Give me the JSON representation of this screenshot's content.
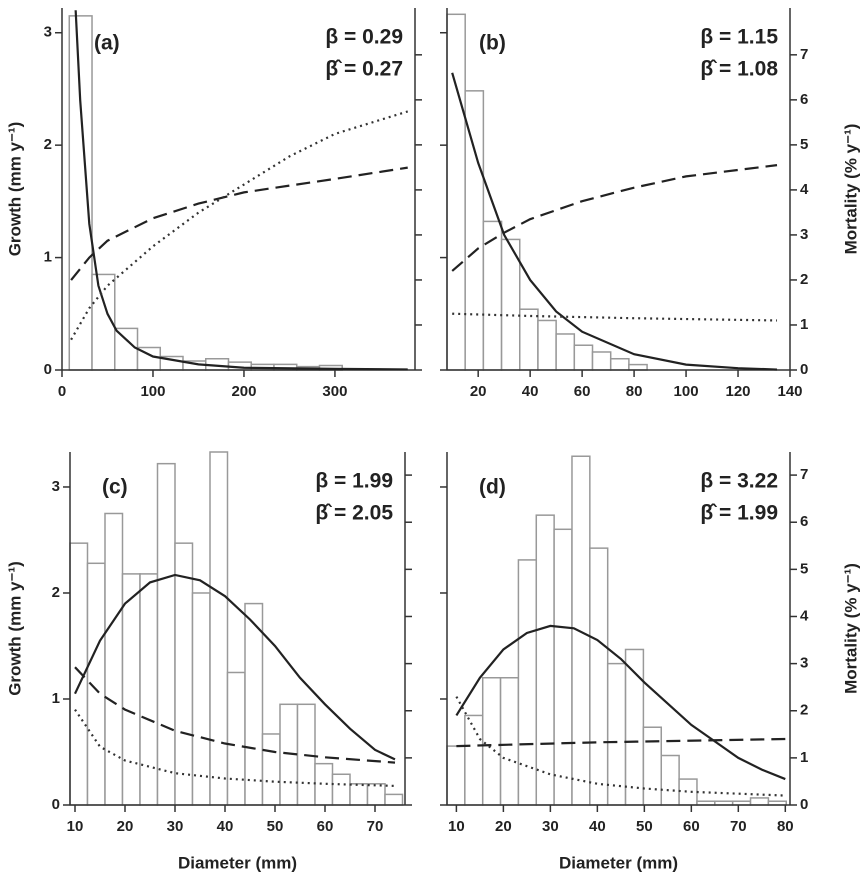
{
  "chart_data": [
    {
      "type": "histogram",
      "annotations": [
        "(a)",
        "β = 0.29",
        "β̂ = 0.27"
      ],
      "ylabel": "Growth (mm y⁻¹)",
      "xlim": [
        0,
        388
      ],
      "xticks": [
        0,
        100,
        200,
        300
      ],
      "ylim": [
        0,
        3.22
      ],
      "yticks": [
        0,
        1,
        2,
        3
      ],
      "ytick_labels": true,
      "y2lim": [
        0,
        8.04
      ],
      "y2ticks": [
        0,
        1,
        2,
        3,
        4,
        5,
        6,
        7
      ],
      "y2tick_labels": false,
      "bins": [
        8,
        33,
        58,
        83,
        108,
        133,
        158,
        183,
        208,
        233,
        258,
        283,
        308
      ],
      "counts": [
        3.15,
        0.85,
        0.37,
        0.2,
        0.12,
        0.08,
        0.1,
        0.07,
        0.05,
        0.05,
        0.03,
        0.04
      ],
      "counts_axis": "y",
      "bar_color": "#999999",
      "series": [
        {
          "style": "solid",
          "axis": "y",
          "color": "#222222",
          "x": [
            15,
            20,
            30,
            40,
            50,
            60,
            80,
            100,
            150,
            200,
            300,
            380
          ],
          "values": [
            3.2,
            2.4,
            1.3,
            0.75,
            0.5,
            0.35,
            0.2,
            0.12,
            0.05,
            0.02,
            0.01,
            0.005
          ]
        },
        {
          "style": "dashed",
          "axis": "y",
          "color": "#222222",
          "x": [
            10,
            30,
            50,
            100,
            150,
            200,
            250,
            300,
            380
          ],
          "values": [
            0.8,
            1.0,
            1.15,
            1.35,
            1.48,
            1.58,
            1.64,
            1.7,
            1.8
          ]
        },
        {
          "style": "dotted",
          "axis": "y",
          "color": "#333333",
          "x": [
            10,
            30,
            50,
            100,
            150,
            200,
            250,
            300,
            380
          ],
          "values": [
            0.27,
            0.55,
            0.75,
            1.1,
            1.4,
            1.65,
            1.9,
            2.1,
            2.3
          ]
        }
      ]
    },
    {
      "type": "histogram",
      "annotations": [
        "(b)",
        "β = 1.15",
        "β̂ = 1.08"
      ],
      "y2label": "Mortality (% y⁻¹)",
      "xlim": [
        8,
        140
      ],
      "xticks": [
        20,
        40,
        60,
        80,
        100,
        120,
        140
      ],
      "ylim": [
        0,
        3.22
      ],
      "yticks": [
        0,
        1,
        2,
        3
      ],
      "ytick_labels": false,
      "y2lim": [
        0,
        8.04
      ],
      "y2ticks": [
        0,
        1,
        2,
        3,
        4,
        5,
        6,
        7
      ],
      "y2tick_labels": true,
      "bins": [
        8,
        15,
        22,
        29,
        36,
        43,
        50,
        57,
        64,
        71,
        78,
        85
      ],
      "counts": [
        7.9,
        6.2,
        3.3,
        2.9,
        1.35,
        1.1,
        0.8,
        0.55,
        0.4,
        0.25,
        0.12
      ],
      "counts_axis": "y2",
      "bar_color": "#999999",
      "series": [
        {
          "style": "solid",
          "axis": "y2",
          "color": "#222222",
          "x": [
            10,
            20,
            30,
            40,
            50,
            60,
            80,
            100,
            120,
            135
          ],
          "values": [
            6.6,
            4.6,
            3.0,
            2.0,
            1.3,
            0.85,
            0.35,
            0.12,
            0.04,
            0.01
          ]
        },
        {
          "style": "dashed",
          "axis": "y2",
          "color": "#222222",
          "x": [
            10,
            20,
            30,
            40,
            60,
            80,
            100,
            135
          ],
          "values": [
            2.2,
            2.7,
            3.05,
            3.35,
            3.75,
            4.05,
            4.3,
            4.55
          ]
        },
        {
          "style": "dotted",
          "axis": "y2",
          "color": "#333333",
          "x": [
            10,
            40,
            80,
            135
          ],
          "values": [
            1.25,
            1.2,
            1.15,
            1.1
          ]
        }
      ]
    },
    {
      "type": "histogram",
      "annotations": [
        "(c)",
        "β = 1.99",
        "β̂ = 2.05"
      ],
      "ylabel": "Growth (mm y⁻¹)",
      "xlabel": "Diameter (mm)",
      "xlim": [
        9,
        76
      ],
      "xticks": [
        10,
        20,
        30,
        40,
        50,
        60,
        70
      ],
      "ylim": [
        0,
        3.33
      ],
      "yticks": [
        0,
        1,
        2,
        3
      ],
      "ytick_labels": true,
      "y2lim": [
        0,
        7.49
      ],
      "y2ticks": [
        0,
        1,
        2,
        3,
        4,
        5,
        6,
        7
      ],
      "y2tick_labels": false,
      "bins": [
        9,
        12.5,
        16,
        19.5,
        23,
        26.5,
        30,
        33.5,
        37,
        40.5,
        44,
        47.5,
        51,
        54.5,
        58,
        61.5,
        65,
        68.5,
        72,
        75.5
      ],
      "counts": [
        2.47,
        2.28,
        2.75,
        2.18,
        2.18,
        3.22,
        2.47,
        2.0,
        3.33,
        1.25,
        1.9,
        0.67,
        0.95,
        0.95,
        0.39,
        0.29,
        0.2,
        0.2,
        0.1
      ],
      "counts_axis": "y",
      "bar_color": "#999999",
      "series": [
        {
          "style": "solid",
          "axis": "y",
          "color": "#222222",
          "x": [
            10,
            15,
            20,
            25,
            30,
            35,
            40,
            45,
            50,
            55,
            60,
            65,
            70,
            74
          ],
          "values": [
            1.05,
            1.55,
            1.9,
            2.1,
            2.17,
            2.12,
            1.97,
            1.75,
            1.5,
            1.2,
            0.95,
            0.72,
            0.52,
            0.43
          ]
        },
        {
          "style": "dashed",
          "axis": "y",
          "color": "#222222",
          "x": [
            10,
            15,
            20,
            30,
            40,
            50,
            60,
            74
          ],
          "values": [
            1.3,
            1.05,
            0.9,
            0.7,
            0.58,
            0.5,
            0.45,
            0.4
          ]
        },
        {
          "style": "dotted",
          "axis": "y",
          "color": "#333333",
          "x": [
            10,
            15,
            20,
            30,
            40,
            50,
            60,
            74
          ],
          "values": [
            0.9,
            0.55,
            0.42,
            0.3,
            0.25,
            0.22,
            0.2,
            0.18
          ]
        }
      ]
    },
    {
      "type": "histogram",
      "annotations": [
        "(d)",
        "β = 3.22",
        "β̂ = 1.99"
      ],
      "y2label": "Mortality (% y⁻¹)",
      "xlabel": "Diameter (mm)",
      "xlim": [
        8,
        81
      ],
      "xticks": [
        10,
        20,
        30,
        40,
        50,
        60,
        70,
        80
      ],
      "ylim": [
        0,
        3.33
      ],
      "yticks": [
        0,
        1,
        2,
        3
      ],
      "ytick_labels": false,
      "y2lim": [
        0,
        7.49
      ],
      "y2ticks": [
        0,
        1,
        2,
        3,
        4,
        5,
        6,
        7
      ],
      "y2tick_labels": true,
      "bins": [
        8,
        11.8,
        15.6,
        19.4,
        23.2,
        27,
        30.8,
        34.6,
        38.4,
        42.2,
        46,
        49.8,
        53.6,
        57.4,
        61.2,
        65,
        68.8,
        72.6,
        76.4,
        80.2
      ],
      "counts": [
        1.25,
        1.9,
        2.7,
        2.7,
        5.2,
        6.15,
        5.85,
        7.4,
        5.45,
        3.0,
        3.3,
        1.65,
        1.05,
        0.55,
        0.08,
        0.08,
        0.08,
        0.15,
        0.08
      ],
      "counts_axis": "y2",
      "bar_color": "#999999",
      "series": [
        {
          "style": "solid",
          "axis": "y2",
          "color": "#222222",
          "x": [
            10,
            15,
            20,
            25,
            30,
            35,
            40,
            45,
            50,
            55,
            60,
            65,
            70,
            75,
            80
          ],
          "values": [
            1.9,
            2.7,
            3.3,
            3.65,
            3.8,
            3.75,
            3.5,
            3.1,
            2.6,
            2.15,
            1.7,
            1.35,
            1.0,
            0.75,
            0.55
          ]
        },
        {
          "style": "dashed",
          "axis": "y2",
          "color": "#222222",
          "x": [
            10,
            40,
            80
          ],
          "values": [
            1.25,
            1.33,
            1.4
          ]
        },
        {
          "style": "dotted",
          "axis": "y2",
          "color": "#333333",
          "x": [
            10,
            15,
            20,
            30,
            40,
            50,
            60,
            80
          ],
          "values": [
            2.3,
            1.4,
            1.0,
            0.65,
            0.45,
            0.35,
            0.28,
            0.2
          ]
        }
      ]
    }
  ]
}
